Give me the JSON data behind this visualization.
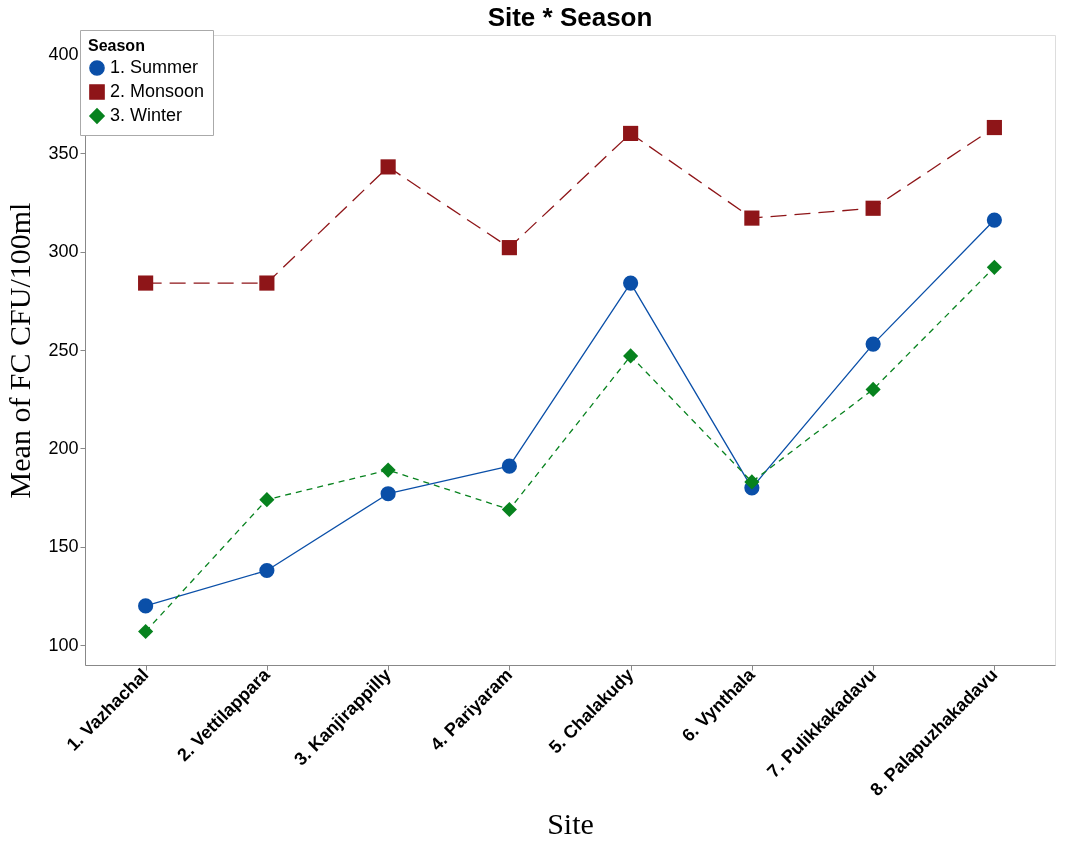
{
  "chart_data": {
    "type": "line",
    "title": "Site * Season",
    "xlabel": "Site",
    "ylabel": "Mean of FC CFU/100ml",
    "legend_title": "Season",
    "legend": "top left",
    "grid": false,
    "categories": [
      "1. Vazhachal",
      "2. Vettilappara",
      "3. Kanjirappilly",
      "4. Pariyaram",
      "5. Chalakudy",
      "6. Vynthala",
      "7. Pulikkakadavu",
      "8. Palapuzhakadavu"
    ],
    "ylim": [
      90,
      410
    ],
    "yticks": [
      100,
      150,
      200,
      250,
      300,
      350,
      400
    ],
    "series": [
      {
        "name": "1. Summer",
        "color": "#0a4fa8",
        "marker": "circle",
        "line_style": "solid",
        "values": [
          120,
          138,
          177,
          191,
          284,
          180,
          253,
          316
        ]
      },
      {
        "name": "2. Monsoon",
        "color": "#8e1518",
        "marker": "square",
        "line_style": "dashed",
        "values": [
          284,
          284,
          343,
          302,
          360,
          317,
          322,
          363
        ]
      },
      {
        "name": "3. Winter",
        "color": "#07821e",
        "marker": "diamond",
        "line_style": "dotted",
        "values": [
          107,
          174,
          189,
          169,
          247,
          183,
          230,
          292
        ]
      }
    ]
  }
}
